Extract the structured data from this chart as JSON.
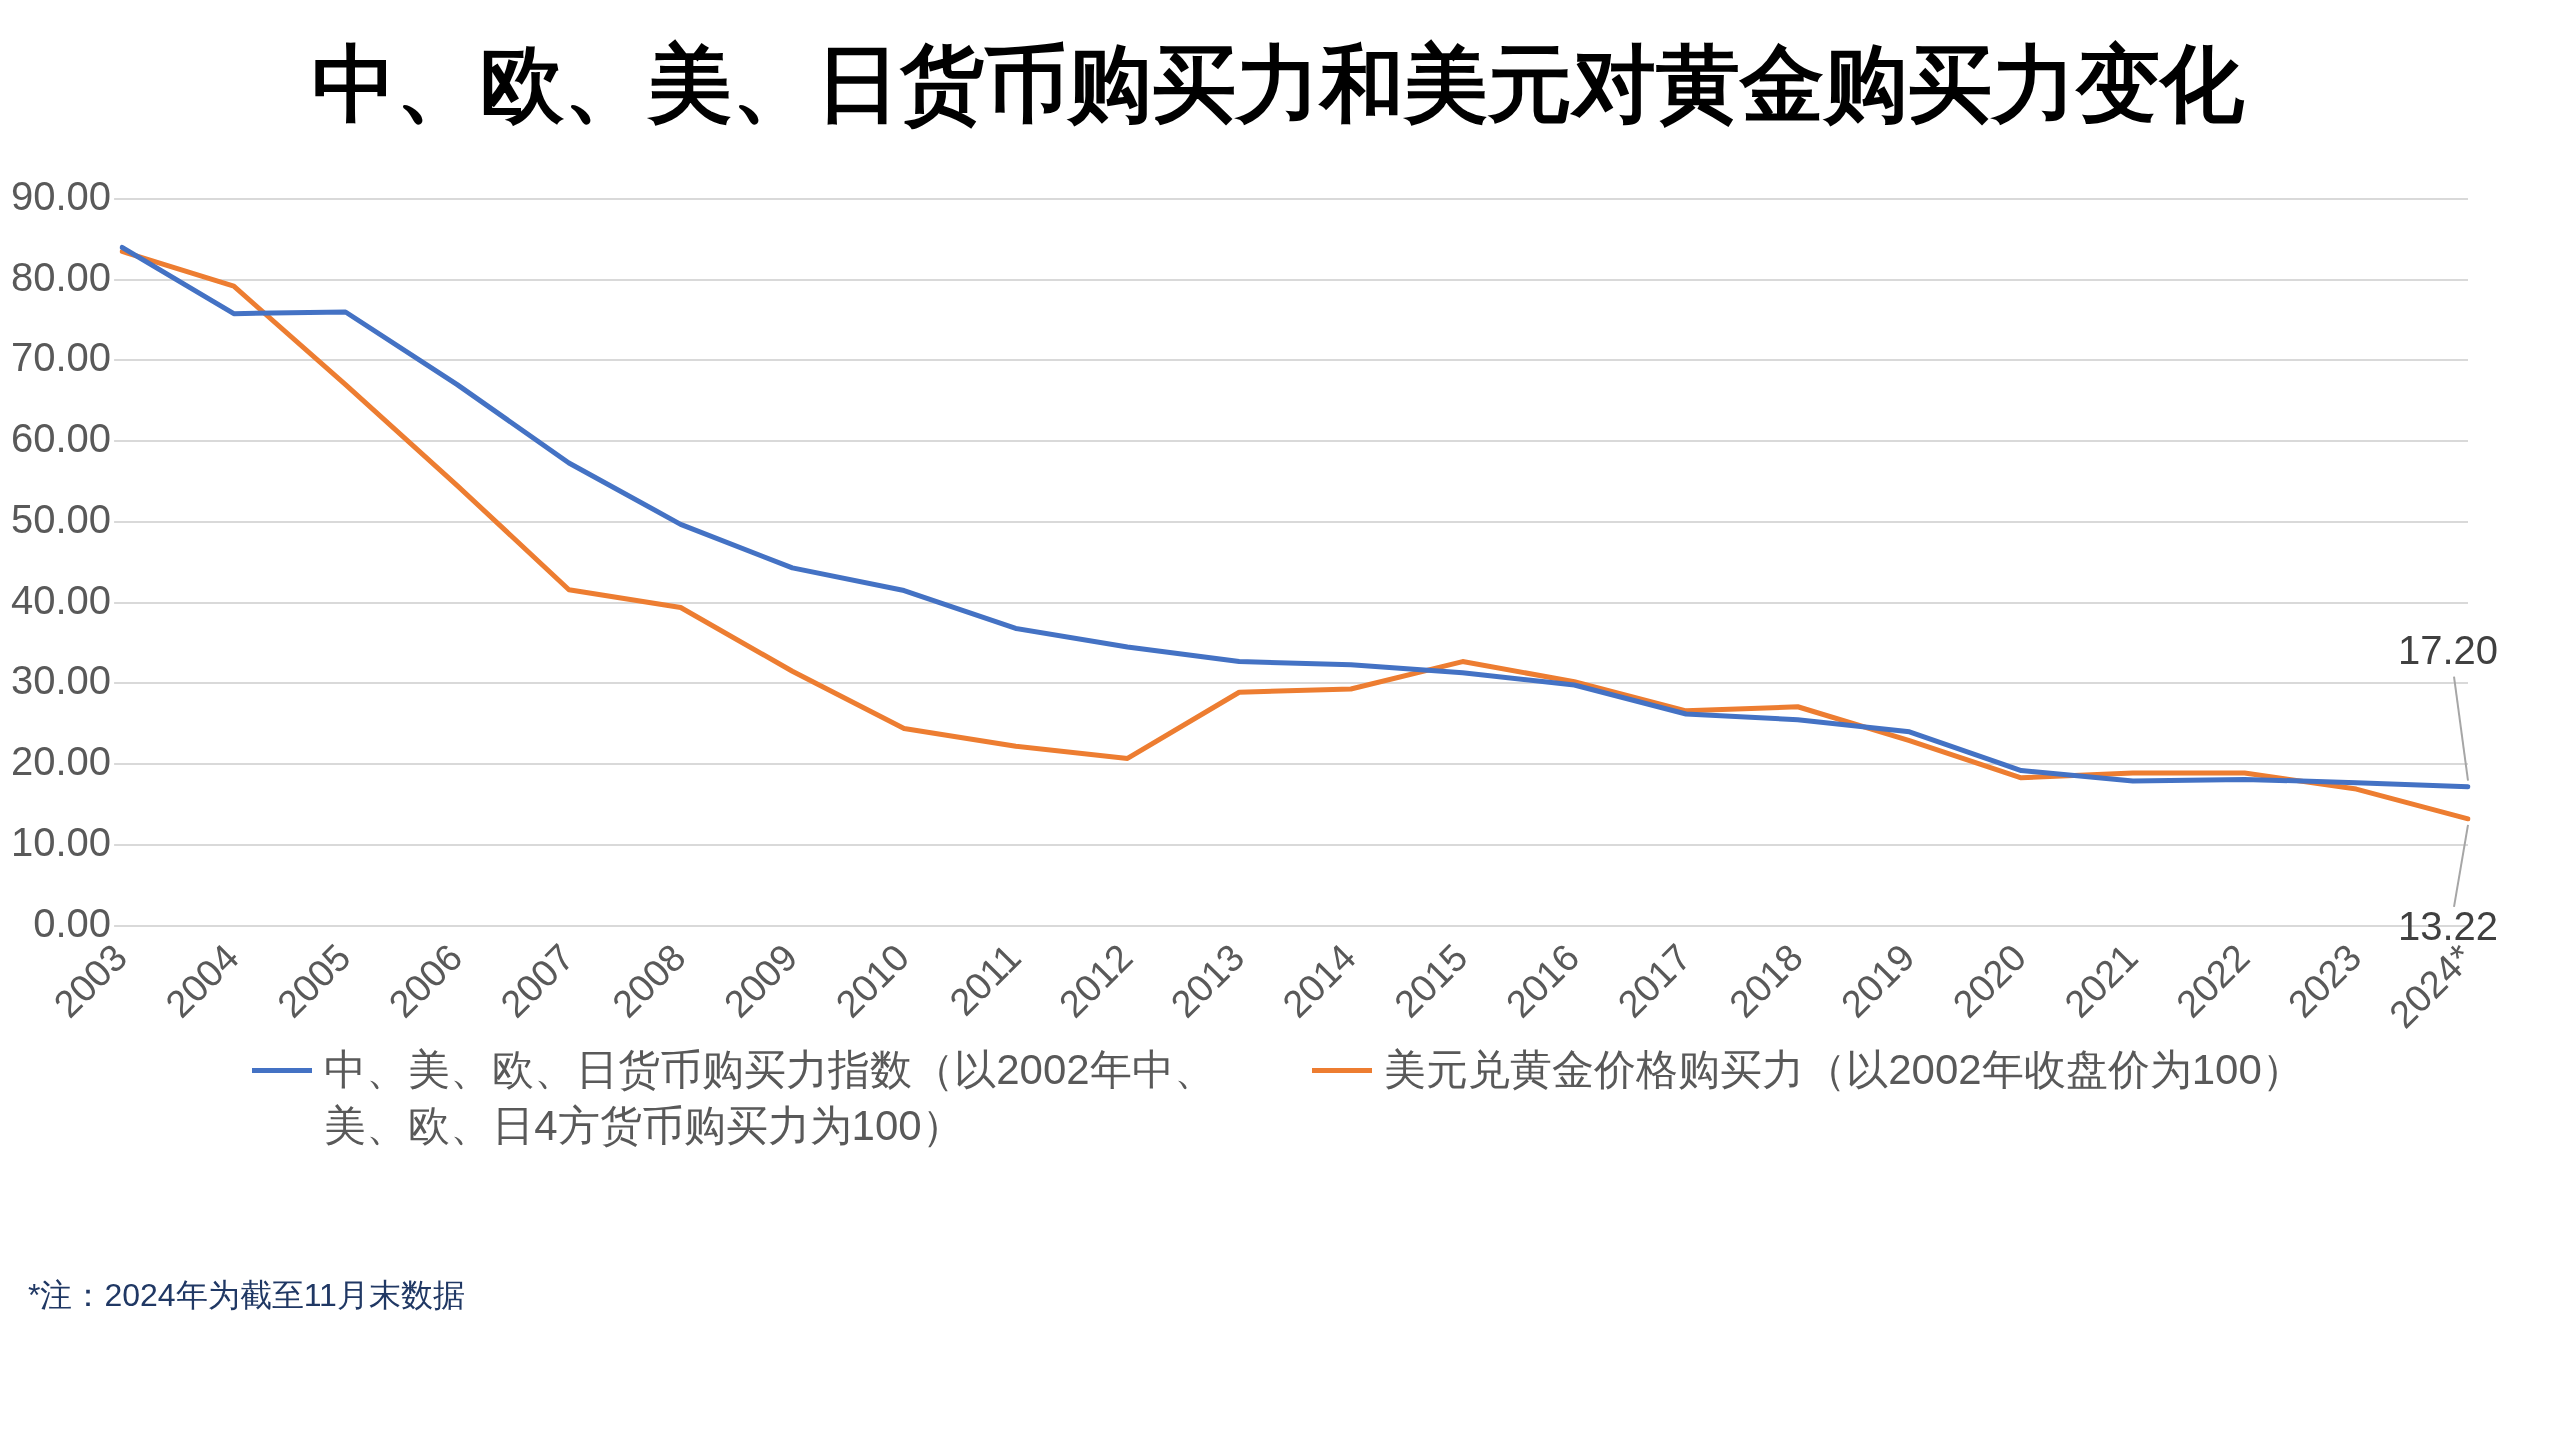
{
  "chart_data": {
    "type": "line",
    "title": "中、欧、美、日货币购买力和美元对黄金购买力变化",
    "categories": [
      "2003",
      "2004",
      "2005",
      "2006",
      "2007",
      "2008",
      "2009",
      "2010",
      "2011",
      "2012",
      "2013",
      "2014",
      "2015",
      "2016",
      "2017",
      "2018",
      "2019",
      "2020",
      "2021",
      "2022",
      "2023",
      "2024*"
    ],
    "series": [
      {
        "name": "中、美、欧、日货币购买力指数（以2002年中、美、欧、日4方货币购买力为100）",
        "color": "#4472c4",
        "values": [
          84,
          75.8,
          76,
          67,
          57.3,
          49.7,
          44.3,
          41.5,
          36.8,
          34.5,
          32.7,
          32.3,
          31.3,
          29.8,
          26.2,
          25.5,
          24,
          19.2,
          17.9,
          18.1,
          17.7,
          17.2
        ],
        "value_labels": [
          null,
          null,
          null,
          null,
          null,
          null,
          null,
          null,
          null,
          null,
          null,
          null,
          null,
          null,
          null,
          null,
          null,
          null,
          null,
          null,
          null,
          "17.20"
        ]
      },
      {
        "name": "美元兑黄金价格购买力（以2002年收盘价为100）",
        "color": "#ed7d31",
        "values": [
          83.5,
          79.2,
          67,
          54.5,
          41.6,
          39.4,
          31.5,
          24.4,
          22.2,
          20.7,
          28.9,
          29.3,
          32.7,
          30.2,
          26.6,
          27.1,
          22.9,
          18.3,
          18.9,
          18.9,
          16.9,
          13.22
        ],
        "value_labels": [
          null,
          null,
          null,
          null,
          null,
          null,
          null,
          null,
          null,
          null,
          null,
          null,
          null,
          null,
          null,
          null,
          null,
          null,
          null,
          null,
          null,
          "13.22"
        ]
      }
    ],
    "ylim": [
      0,
      90
    ],
    "yticks": [
      {
        "value": 0,
        "label": "0.00"
      },
      {
        "value": 10,
        "label": "10.00"
      },
      {
        "value": 20,
        "label": "20.00"
      },
      {
        "value": 30,
        "label": "30.00"
      },
      {
        "value": 40,
        "label": "40.00"
      },
      {
        "value": 50,
        "label": "50.00"
      },
      {
        "value": 60,
        "label": "60.00"
      },
      {
        "value": 70,
        "label": "70.00"
      },
      {
        "value": 80,
        "label": "80.00"
      },
      {
        "value": 90,
        "label": "90.00"
      }
    ],
    "grid": "y",
    "legend": "bottom",
    "marker": "none",
    "line_style": "solid",
    "annotations": [
      "*注：2024年为截至11月末数据"
    ]
  }
}
